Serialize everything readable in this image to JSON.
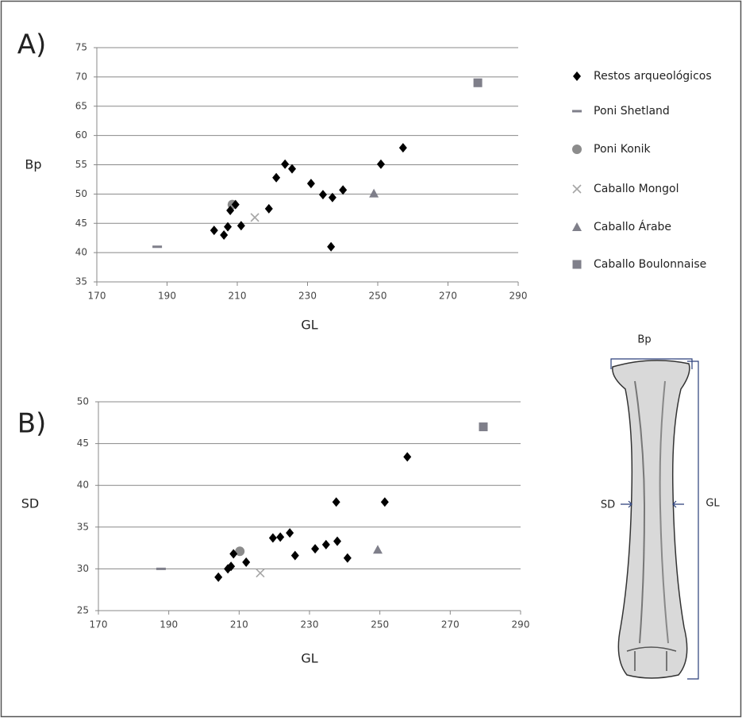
{
  "chart_data": [
    {
      "type": "scatter",
      "label": "A)",
      "x_label": "GL",
      "y_label": "Bp",
      "xlim": [
        170,
        290
      ],
      "xticks": [
        170,
        190,
        210,
        230,
        250,
        270,
        290
      ],
      "ylim": [
        35,
        75
      ],
      "yticks": [
        35,
        40,
        45,
        50,
        55,
        60,
        65,
        70,
        75
      ],
      "grid": true,
      "series": [
        {
          "name": "Restos arqueológicos",
          "marker": "diamond",
          "color": "#000000",
          "x": [
            203.4,
            206.2,
            207.3,
            208.0,
            209.5,
            211.1,
            219.0,
            221.1,
            223.6,
            225.6,
            231.0,
            234.4,
            237.1,
            240.1,
            236.7,
            250.9,
            257.2
          ],
          "values": [
            43.8,
            43.0,
            44.4,
            47.2,
            48.2,
            44.6,
            47.5,
            52.8,
            55.1,
            54.3,
            51.8,
            49.9,
            49.4,
            50.7,
            41.0,
            55.1,
            57.9
          ]
        },
        {
          "name": "Poni Shetland",
          "marker": "dash",
          "color": "#7f7f8a",
          "x": [
            187.2
          ],
          "values": [
            41.0
          ]
        },
        {
          "name": "Poni Konik",
          "marker": "circle",
          "color": "#8c8c8c",
          "x": [
            208.6
          ],
          "values": [
            48.2
          ]
        },
        {
          "name": "Caballo Mongol",
          "marker": "x",
          "color": "#a6a6a6",
          "x": [
            215.0
          ],
          "values": [
            46.0
          ]
        },
        {
          "name": "Caballo Árabe",
          "marker": "triangle",
          "color": "#7f7f8a",
          "x": [
            248.9
          ],
          "values": [
            50.1
          ]
        },
        {
          "name": "Caballo Boulonnaise",
          "marker": "square",
          "color": "#7f7f8a",
          "x": [
            278.5
          ],
          "values": [
            69.0
          ]
        }
      ]
    },
    {
      "type": "scatter",
      "label": "B)",
      "x_label": "GL",
      "y_label": "SD",
      "xlim": [
        170,
        290
      ],
      "xticks": [
        170,
        190,
        210,
        230,
        250,
        270,
        290
      ],
      "ylim": [
        25,
        50
      ],
      "yticks": [
        25,
        30,
        35,
        40,
        45,
        50
      ],
      "grid": true,
      "series": [
        {
          "marker": "diamond",
          "color": "#000000",
          "x": [
            204.1,
            206.8,
            207.7,
            208.4,
            212.0,
            219.6,
            221.7,
            224.4,
            225.9,
            231.6,
            234.7,
            237.9,
            237.6,
            240.8,
            251.4,
            257.8
          ],
          "values": [
            29.0,
            30.0,
            30.3,
            31.8,
            30.8,
            33.7,
            33.8,
            34.3,
            31.6,
            32.4,
            32.9,
            33.3,
            38.0,
            31.3,
            38.0,
            43.4
          ]
        },
        {
          "marker": "dash",
          "color": "#7f7f8a",
          "x": [
            187.8
          ],
          "values": [
            30.0
          ]
        },
        {
          "marker": "circle",
          "color": "#8c8c8c",
          "x": [
            210.2
          ],
          "values": [
            32.1
          ]
        },
        {
          "marker": "x",
          "color": "#a6a6a6",
          "x": [
            216.0
          ],
          "values": [
            29.5
          ]
        },
        {
          "marker": "triangle",
          "color": "#7f7f8a",
          "x": [
            249.4
          ],
          "values": [
            32.3
          ]
        },
        {
          "marker": "square",
          "color": "#7f7f8a",
          "x": [
            279.4
          ],
          "values": [
            47.0
          ]
        }
      ]
    }
  ],
  "bone_labels": {
    "top": "Bp",
    "left": "SD",
    "right": "GL"
  }
}
